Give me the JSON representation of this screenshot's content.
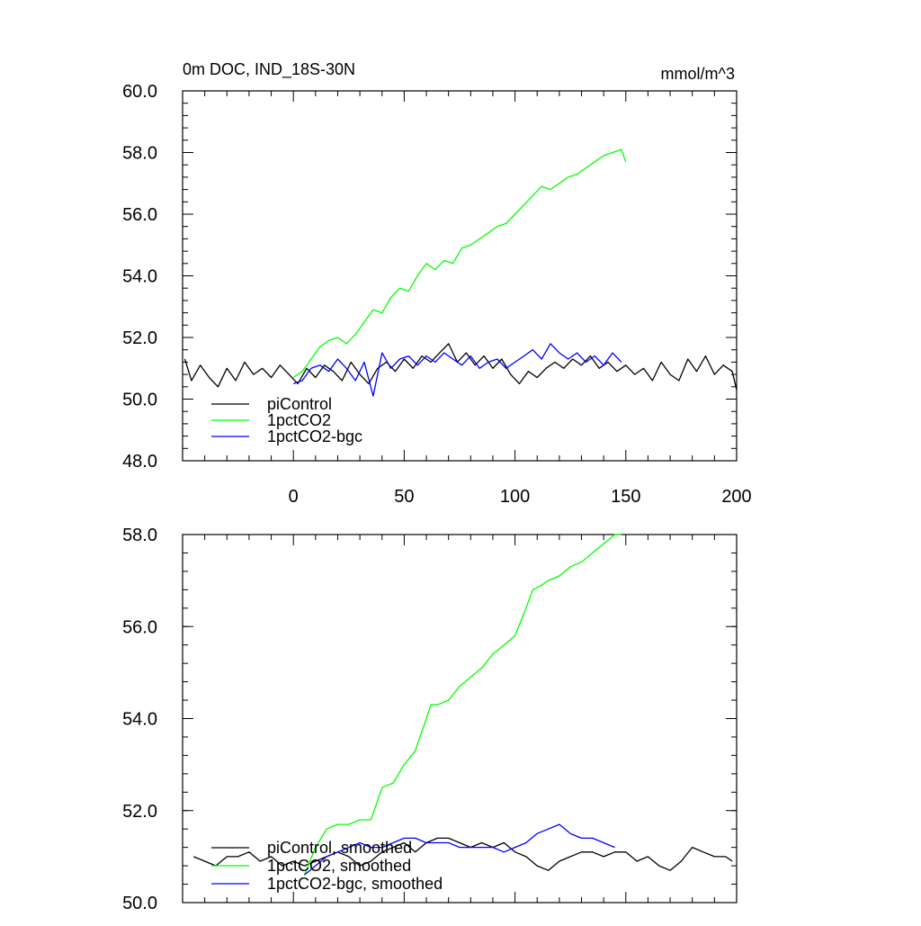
{
  "chart_data": [
    {
      "type": "line",
      "title": "0m DOC, IND_18S-30N",
      "units": "mmol/m^3",
      "xlim": [
        -50,
        200
      ],
      "ylim": [
        48,
        60
      ],
      "x_major_ticks": [
        0,
        50,
        100,
        150,
        200
      ],
      "x_tick_labels": [
        "0",
        "50",
        "100",
        "150",
        "200"
      ],
      "y_major_ticks": [
        48,
        50,
        52,
        54,
        56,
        58,
        60
      ],
      "y_tick_labels": [
        "48.0",
        "50.0",
        "52.0",
        "54.0",
        "56.0",
        "58.0",
        "60.0"
      ],
      "legend_placement": "lower-left",
      "series": [
        {
          "name": "piControl",
          "color": "#000000",
          "x": [
            -49,
            -46,
            -42,
            -38,
            -34,
            -30,
            -26,
            -22,
            -18,
            -14,
            -10,
            -6,
            -2,
            2,
            6,
            10,
            14,
            18,
            22,
            26,
            30,
            34,
            38,
            42,
            46,
            50,
            54,
            58,
            62,
            66,
            70,
            74,
            78,
            82,
            86,
            90,
            94,
            98,
            102,
            106,
            110,
            114,
            118,
            122,
            126,
            130,
            134,
            138,
            142,
            146,
            150,
            154,
            158,
            162,
            166,
            170,
            174,
            178,
            182,
            186,
            190,
            194,
            198,
            200
          ],
          "values": [
            51.3,
            50.6,
            51.1,
            50.7,
            50.4,
            51.0,
            50.6,
            51.2,
            50.8,
            51.0,
            50.7,
            51.1,
            50.8,
            50.5,
            51.0,
            50.7,
            51.1,
            50.9,
            50.6,
            51.2,
            50.8,
            50.5,
            51.0,
            51.2,
            50.9,
            51.3,
            51.0,
            51.4,
            51.2,
            51.5,
            51.8,
            51.2,
            51.5,
            51.1,
            51.4,
            51.0,
            51.3,
            50.8,
            50.5,
            50.9,
            50.7,
            51.0,
            51.2,
            51.0,
            51.3,
            51.1,
            51.4,
            51.0,
            51.2,
            50.9,
            51.1,
            50.8,
            51.0,
            50.6,
            51.2,
            50.8,
            50.6,
            51.3,
            50.9,
            51.4,
            50.8,
            51.1,
            50.9,
            50.3
          ]
        },
        {
          "name": "1pctCO2",
          "color": "#00ff00",
          "x": [
            0,
            4,
            8,
            12,
            16,
            20,
            24,
            28,
            32,
            36,
            40,
            44,
            48,
            52,
            56,
            60,
            64,
            68,
            72,
            76,
            80,
            84,
            88,
            92,
            96,
            100,
            104,
            108,
            112,
            116,
            120,
            124,
            128,
            132,
            136,
            140,
            144,
            148,
            150
          ],
          "values": [
            50.7,
            50.9,
            51.3,
            51.7,
            51.9,
            52.0,
            51.8,
            52.1,
            52.5,
            52.9,
            52.8,
            53.3,
            53.6,
            53.5,
            54.0,
            54.4,
            54.2,
            54.5,
            54.4,
            54.9,
            55.0,
            55.2,
            55.4,
            55.6,
            55.7,
            56.0,
            56.3,
            56.6,
            56.9,
            56.8,
            57.0,
            57.2,
            57.3,
            57.5,
            57.7,
            57.9,
            58.0,
            58.1,
            57.7
          ]
        },
        {
          "name": "1pctCO2-bgc",
          "color": "#0000ff",
          "x": [
            0,
            4,
            8,
            12,
            16,
            20,
            24,
            28,
            32,
            36,
            40,
            44,
            48,
            52,
            56,
            60,
            64,
            68,
            72,
            76,
            80,
            84,
            88,
            92,
            96,
            100,
            104,
            108,
            112,
            116,
            120,
            124,
            128,
            132,
            136,
            140,
            144,
            148
          ],
          "values": [
            50.5,
            50.6,
            51.0,
            51.1,
            50.9,
            51.3,
            51.0,
            50.6,
            51.2,
            50.1,
            51.5,
            51.0,
            51.3,
            51.4,
            51.1,
            51.4,
            51.2,
            51.5,
            51.3,
            51.1,
            51.4,
            51.0,
            51.2,
            51.3,
            51.0,
            51.2,
            51.4,
            51.6,
            51.3,
            51.8,
            51.5,
            51.3,
            51.5,
            51.2,
            51.4,
            51.1,
            51.5,
            51.2
          ]
        }
      ]
    },
    {
      "type": "line",
      "xlim": [
        -50,
        200
      ],
      "ylim": [
        50,
        58
      ],
      "x_major_ticks": [
        0,
        50,
        100,
        150,
        200
      ],
      "y_major_ticks": [
        50,
        52,
        54,
        56,
        58
      ],
      "y_tick_labels": [
        "50.0",
        "52.0",
        "54.0",
        "56.0",
        "58.0"
      ],
      "legend_placement": "lower-left",
      "series": [
        {
          "name": "piControl, smoothed",
          "color": "#000000",
          "x": [
            -45,
            -40,
            -35,
            -30,
            -25,
            -20,
            -15,
            -10,
            -5,
            0,
            5,
            10,
            15,
            20,
            25,
            30,
            35,
            40,
            45,
            50,
            55,
            60,
            65,
            70,
            75,
            80,
            85,
            90,
            95,
            100,
            105,
            110,
            115,
            120,
            125,
            130,
            135,
            140,
            145,
            150,
            155,
            160,
            165,
            170,
            175,
            180,
            185,
            190,
            195,
            198
          ],
          "values": [
            51.0,
            50.9,
            50.8,
            51.0,
            51.0,
            51.1,
            50.9,
            51.0,
            50.8,
            50.9,
            50.8,
            50.9,
            51.0,
            51.1,
            51.0,
            50.8,
            50.9,
            51.1,
            51.2,
            51.3,
            51.1,
            51.3,
            51.4,
            51.4,
            51.3,
            51.2,
            51.3,
            51.2,
            51.3,
            51.1,
            51.0,
            50.8,
            50.7,
            50.9,
            51.0,
            51.1,
            51.1,
            51.0,
            51.1,
            51.1,
            50.9,
            51.0,
            50.8,
            50.7,
            50.9,
            51.2,
            51.1,
            51.0,
            51.0,
            50.9
          ]
        },
        {
          "name": "1pctCO2, smoothed",
          "color": "#00ff00",
          "x": [
            5,
            10,
            15,
            20,
            25,
            30,
            35,
            40,
            45,
            50,
            55,
            60,
            62,
            65,
            70,
            75,
            80,
            85,
            90,
            95,
            100,
            105,
            108,
            112,
            115,
            120,
            125,
            130,
            135,
            140,
            145,
            148
          ],
          "values": [
            50.6,
            51.2,
            51.6,
            51.7,
            51.7,
            51.8,
            51.8,
            52.5,
            52.6,
            53.0,
            53.3,
            54.0,
            54.3,
            54.3,
            54.4,
            54.7,
            54.9,
            55.1,
            55.4,
            55.6,
            55.8,
            56.4,
            56.8,
            56.9,
            57.0,
            57.1,
            57.3,
            57.4,
            57.6,
            57.8,
            58.0,
            58.0
          ]
        },
        {
          "name": "1pctCO2-bgc, smoothed",
          "color": "#0000ff",
          "x": [
            5,
            10,
            15,
            20,
            25,
            30,
            35,
            40,
            45,
            50,
            55,
            60,
            65,
            70,
            75,
            80,
            85,
            90,
            95,
            100,
            105,
            110,
            115,
            120,
            125,
            130,
            135,
            140,
            145
          ],
          "values": [
            50.6,
            50.8,
            51.0,
            51.1,
            51.2,
            51.3,
            51.2,
            51.2,
            51.3,
            51.4,
            51.4,
            51.3,
            51.3,
            51.3,
            51.2,
            51.2,
            51.2,
            51.2,
            51.1,
            51.2,
            51.3,
            51.5,
            51.6,
            51.7,
            51.5,
            51.4,
            51.4,
            51.3,
            51.2
          ]
        }
      ]
    }
  ]
}
